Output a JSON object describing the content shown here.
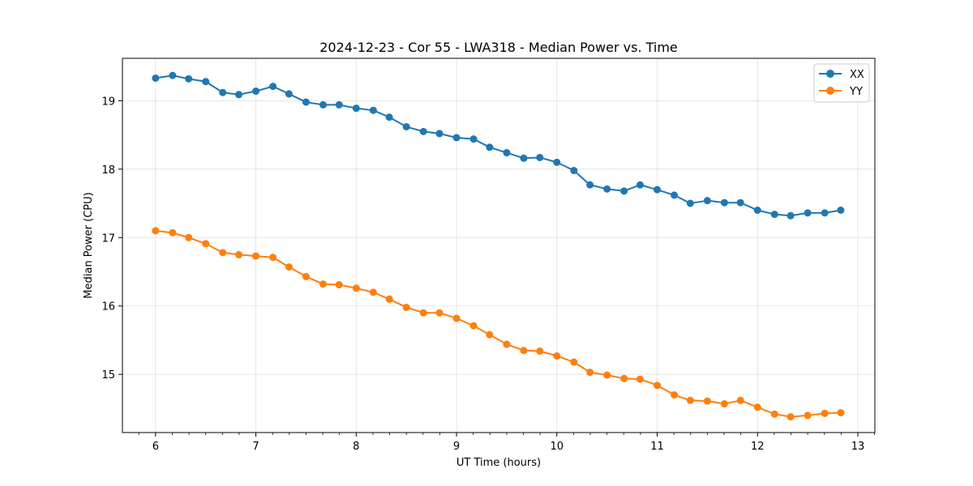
{
  "chart_data": {
    "type": "line",
    "title": "2024-12-23 - Cor 55 - LWA318 - Median Power vs. Time",
    "xlabel": "UT Time (hours)",
    "ylabel": "Median Power (CPU)",
    "xlim": [
      5.67,
      13.17
    ],
    "ylim": [
      14.15,
      19.62
    ],
    "xticks": [
      6,
      7,
      8,
      9,
      10,
      11,
      12,
      13
    ],
    "xtick_labels": [
      "6",
      "7",
      "8",
      "9",
      "10",
      "11",
      "12",
      "13"
    ],
    "yticks": [
      15,
      16,
      17,
      18,
      19
    ],
    "ytick_labels": [
      "15",
      "16",
      "17",
      "18",
      "19"
    ],
    "grid": true,
    "legend_position": "top-right",
    "x": [
      6.0,
      6.17,
      6.33,
      6.5,
      6.67,
      6.83,
      7.0,
      7.17,
      7.33,
      7.5,
      7.67,
      7.83,
      8.0,
      8.17,
      8.33,
      8.5,
      8.67,
      8.83,
      9.0,
      9.17,
      9.33,
      9.5,
      9.67,
      9.83,
      10.0,
      10.17,
      10.33,
      10.5,
      10.67,
      10.83,
      11.0,
      11.17,
      11.33,
      11.5,
      11.67,
      11.83,
      12.0,
      12.17,
      12.33,
      12.5,
      12.67,
      12.83
    ],
    "series": [
      {
        "name": "XX",
        "color": "#1f77b4",
        "values": [
          19.33,
          19.37,
          19.32,
          19.28,
          19.12,
          19.09,
          19.14,
          19.21,
          19.1,
          18.98,
          18.94,
          18.94,
          18.89,
          18.86,
          18.76,
          18.62,
          18.55,
          18.52,
          18.46,
          18.44,
          18.32,
          18.24,
          18.16,
          18.17,
          18.1,
          17.98,
          17.77,
          17.71,
          17.68,
          17.77,
          17.7,
          17.62,
          17.5,
          17.54,
          17.51,
          17.51,
          17.4,
          17.34,
          17.32,
          17.36,
          17.36,
          17.4
        ]
      },
      {
        "name": "YY",
        "color": "#ff7f0e",
        "values": [
          17.1,
          17.07,
          17.0,
          16.91,
          16.78,
          16.75,
          16.73,
          16.71,
          16.57,
          16.43,
          16.32,
          16.31,
          16.26,
          16.2,
          16.1,
          15.98,
          15.9,
          15.9,
          15.82,
          15.71,
          15.58,
          15.44,
          15.35,
          15.34,
          15.27,
          15.18,
          15.03,
          14.99,
          14.94,
          14.93,
          14.84,
          14.7,
          14.62,
          14.61,
          14.57,
          14.62,
          14.52,
          14.42,
          14.38,
          14.4,
          14.43,
          14.44
        ]
      }
    ]
  }
}
